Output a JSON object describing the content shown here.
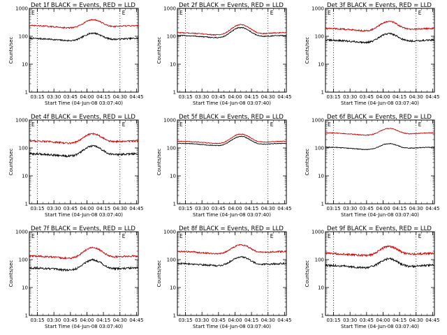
{
  "figure": {
    "width": 640,
    "height": 480,
    "background": "#ffffff",
    "events_color": "#000000",
    "lld_color": "#cc0000"
  },
  "chart_data": [
    {
      "type": "line",
      "title": "Det 1f BLACK = Events, RED = LLD",
      "xlabel": "Start Time (04-Jun-08 03:07:40)",
      "ylabel": "Counts/sec",
      "yscale": "log",
      "ylim": [
        1,
        1000
      ],
      "xlim": [
        "03:07:40",
        "04:46:40"
      ],
      "x_ticks": [
        "03:15",
        "03:30",
        "03:45",
        "04:00",
        "04:15",
        "04:30",
        "04:45"
      ],
      "y_ticks": [
        "1",
        "10",
        "100",
        "1000"
      ],
      "markers": [
        "03:15",
        "04:30"
      ],
      "marker_labels": [
        "E",
        "E"
      ],
      "series": [
        {
          "name": "Events",
          "color": "#000000",
          "baseline": 75,
          "peak": 145,
          "noise": 0.06
        },
        {
          "name": "LLD",
          "color": "#cc0000",
          "baseline": 215,
          "peak": 440,
          "noise": 0.05
        }
      ]
    },
    {
      "type": "line",
      "title": "Det 2f BLACK = Events, RED = LLD",
      "xlabel": "Start Time (04-Jun-08 03:07:40)",
      "ylabel": "Counts/sec",
      "yscale": "log",
      "ylim": [
        1,
        1000
      ],
      "xlim": [
        "03:07:40",
        "04:46:40"
      ],
      "x_ticks": [
        "03:15",
        "03:30",
        "03:45",
        "04:00",
        "04:15",
        "04:30",
        "04:45"
      ],
      "y_ticks": [
        "1",
        "10",
        "100",
        "1000"
      ],
      "markers": [
        "03:15",
        "04:30"
      ],
      "marker_labels": [
        "E",
        "E"
      ],
      "series": [
        {
          "name": "Events",
          "color": "#000000",
          "baseline": 95,
          "peak": 230,
          "noise": 0.04
        },
        {
          "name": "LLD",
          "color": "#cc0000",
          "baseline": 120,
          "peak": 290,
          "noise": 0.04
        }
      ]
    },
    {
      "type": "line",
      "title": "Det 3f BLACK = Events, RED = LLD",
      "xlabel": "Start Time (04-Jun-08 03:07:40)",
      "ylabel": "Counts/sec",
      "yscale": "log",
      "ylim": [
        1,
        1000
      ],
      "xlim": [
        "03:07:40",
        "04:46:40"
      ],
      "x_ticks": [
        "03:15",
        "03:30",
        "03:45",
        "04:00",
        "04:15",
        "04:30",
        "04:45"
      ],
      "y_ticks": [
        "1",
        "10",
        "100",
        "1000"
      ],
      "markers": [
        "03:15",
        "04:30"
      ],
      "marker_labels": [
        "E",
        "E"
      ],
      "series": [
        {
          "name": "Events",
          "color": "#000000",
          "baseline": 65,
          "peak": 140,
          "noise": 0.07
        },
        {
          "name": "LLD",
          "color": "#cc0000",
          "baseline": 170,
          "peak": 380,
          "noise": 0.06
        }
      ]
    },
    {
      "type": "line",
      "title": "Det 4f BLACK = Events, RED = LLD",
      "xlabel": "Start Time (04-Jun-08 03:07:40)",
      "ylabel": "Counts/sec",
      "yscale": "log",
      "ylim": [
        1,
        1000
      ],
      "xlim": [
        "03:07:40",
        "04:46:40"
      ],
      "x_ticks": [
        "03:15",
        "03:30",
        "03:45",
        "04:00",
        "04:15",
        "04:30",
        "04:45"
      ],
      "y_ticks": [
        "1",
        "10",
        "100",
        "1000"
      ],
      "markers": [
        "03:15",
        "04:30"
      ],
      "marker_labels": [
        "E",
        "E"
      ],
      "series": [
        {
          "name": "Events",
          "color": "#000000",
          "baseline": 55,
          "peak": 130,
          "noise": 0.08
        },
        {
          "name": "LLD",
          "color": "#cc0000",
          "baseline": 160,
          "peak": 360,
          "noise": 0.07
        }
      ]
    },
    {
      "type": "line",
      "title": "Det 5f BLACK = Events, RED = LLD",
      "xlabel": "Start Time (04-Jun-08 03:07:40)",
      "ylabel": "Counts/sec",
      "yscale": "log",
      "ylim": [
        1,
        1000
      ],
      "xlim": [
        "03:07:40",
        "04:46:40"
      ],
      "x_ticks": [
        "03:15",
        "03:30",
        "03:45",
        "04:00",
        "04:15",
        "04:30",
        "04:45"
      ],
      "y_ticks": [
        "1",
        "10",
        "100",
        "1000"
      ],
      "markers": [
        "03:15",
        "04:30"
      ],
      "marker_labels": [
        "E",
        "E"
      ],
      "series": [
        {
          "name": "Events",
          "color": "#000000",
          "baseline": 130,
          "peak": 290,
          "noise": 0.03
        },
        {
          "name": "LLD",
          "color": "#cc0000",
          "baseline": 155,
          "peak": 350,
          "noise": 0.03
        }
      ]
    },
    {
      "type": "line",
      "title": "Det 6f BLACK = Events, RED = LLD",
      "xlabel": "Start Time (04-Jun-08 03:07:40)",
      "ylabel": "Counts/sec",
      "yscale": "log",
      "ylim": [
        1,
        1000
      ],
      "xlim": [
        "03:07:40",
        "04:46:40"
      ],
      "x_ticks": [
        "03:15",
        "03:30",
        "03:45",
        "04:00",
        "04:15",
        "04:30",
        "04:45"
      ],
      "y_ticks": [
        "1",
        "10",
        "100",
        "1000"
      ],
      "markers": [
        "03:15",
        "04:30"
      ],
      "marker_labels": [
        "E",
        "E"
      ],
      "series": [
        {
          "name": "Events",
          "color": "#000000",
          "baseline": 95,
          "peak": 160,
          "noise": 0.03
        },
        {
          "name": "LLD",
          "color": "#cc0000",
          "baseline": 310,
          "peak": 560,
          "noise": 0.03
        }
      ]
    },
    {
      "type": "line",
      "title": "Det 7f BLACK = Events, RED = LLD",
      "xlabel": "Start Time (04-Jun-08 03:07:40)",
      "ylabel": "Counts/sec",
      "yscale": "log",
      "ylim": [
        1,
        1000
      ],
      "xlim": [
        "03:07:40",
        "04:46:40"
      ],
      "x_ticks": [
        "03:15",
        "03:30",
        "03:45",
        "04:00",
        "04:15",
        "04:30",
        "04:45"
      ],
      "y_ticks": [
        "1",
        "10",
        "100",
        "1000"
      ],
      "markers": [
        "03:15",
        "04:30"
      ],
      "marker_labels": [
        "E",
        "E"
      ],
      "series": [
        {
          "name": "Events",
          "color": "#000000",
          "baseline": 45,
          "peak": 110,
          "noise": 0.08
        },
        {
          "name": "LLD",
          "color": "#cc0000",
          "baseline": 120,
          "peak": 300,
          "noise": 0.07
        }
      ]
    },
    {
      "type": "line",
      "title": "Det 8f BLACK = Events, RED = LLD",
      "xlabel": "Start Time (04-Jun-08 03:07:40)",
      "ylabel": "Counts/sec",
      "yscale": "log",
      "ylim": [
        1,
        1000
      ],
      "xlim": [
        "03:07:40",
        "04:46:40"
      ],
      "x_ticks": [
        "03:15",
        "03:30",
        "03:45",
        "04:00",
        "04:15",
        "04:30",
        "04:45"
      ],
      "y_ticks": [
        "1",
        "10",
        "100",
        "1000"
      ],
      "markers": [
        "03:15",
        "04:30"
      ],
      "marker_labels": [
        "E",
        "E"
      ],
      "series": [
        {
          "name": "Events",
          "color": "#000000",
          "baseline": 65,
          "peak": 140,
          "noise": 0.07
        },
        {
          "name": "LLD",
          "color": "#cc0000",
          "baseline": 175,
          "peak": 380,
          "noise": 0.06
        }
      ]
    },
    {
      "type": "line",
      "title": "Det 9f BLACK = Events, RED = LLD",
      "xlabel": "Start Time (04-Jun-08 03:07:40)",
      "ylabel": "Counts/sec",
      "yscale": "log",
      "ylim": [
        1,
        1000
      ],
      "xlim": [
        "03:07:40",
        "04:46:40"
      ],
      "x_ticks": [
        "03:15",
        "03:30",
        "03:45",
        "04:00",
        "04:15",
        "04:30",
        "04:45"
      ],
      "y_ticks": [
        "1",
        "10",
        "100",
        "1000"
      ],
      "markers": [
        "03:15",
        "04:30"
      ],
      "marker_labels": [
        "E",
        "E"
      ],
      "series": [
        {
          "name": "Events",
          "color": "#000000",
          "baseline": 55,
          "peak": 120,
          "noise": 0.09
        },
        {
          "name": "LLD",
          "color": "#cc0000",
          "baseline": 150,
          "peak": 330,
          "noise": 0.08
        }
      ]
    }
  ]
}
